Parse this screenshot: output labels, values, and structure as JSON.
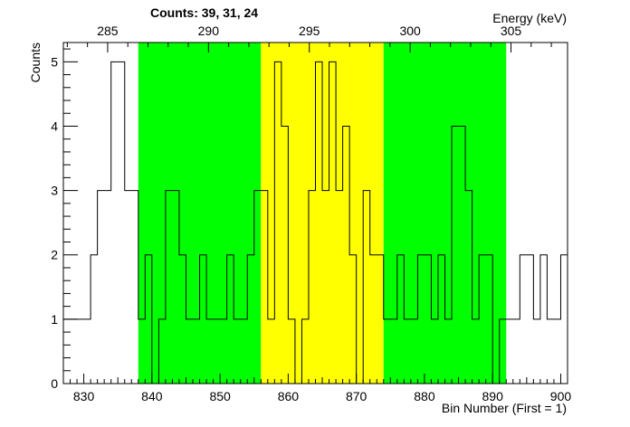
{
  "chart_data": {
    "type": "bar",
    "counts_label": "Counts:   39,   31,   24",
    "xlabel": "Bin Number (First = 1)",
    "ylabel": "Counts",
    "top_axis_label": "Energy (keV)",
    "xlim": [
      827,
      901
    ],
    "ylim": [
      0,
      5.3
    ],
    "x_ticks": [
      "830",
      "840",
      "850",
      "860",
      "870",
      "880",
      "890",
      "900"
    ],
    "y_ticks": [
      "0",
      "1",
      "2",
      "3",
      "4",
      "5"
    ],
    "energy_ticks": [
      "285",
      "290",
      "295",
      "300",
      "305"
    ],
    "energy_tick_bins": [
      833.5,
      848.3,
      863.1,
      877.9,
      892.7
    ],
    "regions": [
      {
        "start": 838,
        "end": 856,
        "color": "#00ff00",
        "count": 39
      },
      {
        "start": 856,
        "end": 874,
        "color": "#ffff00",
        "count": 31
      },
      {
        "start": 874,
        "end": 892,
        "color": "#00ff00",
        "count": 24
      }
    ],
    "bin_start": 827,
    "bin_width": 1,
    "values": [
      1,
      1,
      1,
      1,
      2,
      3,
      3,
      5,
      5,
      3,
      3,
      1,
      2,
      0,
      1,
      3,
      3,
      2,
      1,
      1,
      2,
      1,
      1,
      1,
      2,
      1,
      1,
      2,
      3,
      3,
      1,
      5,
      4,
      1,
      0,
      1,
      3,
      5,
      3,
      5,
      3,
      4,
      2,
      0,
      3,
      2,
      2,
      1,
      1,
      2,
      1,
      1,
      2,
      2,
      1,
      2,
      1,
      4,
      4,
      3,
      1,
      2,
      2,
      0,
      1,
      1,
      1,
      2,
      2,
      1,
      2,
      1,
      1,
      2,
      2,
      3,
      3,
      1,
      0,
      3,
      2,
      2,
      1,
      1,
      1,
      2,
      2,
      2,
      1,
      1,
      1,
      3,
      1,
      1,
      0,
      2,
      1,
      1,
      2,
      2,
      1
    ],
    "colors": {
      "line": "#000000",
      "background": "#ffffff"
    }
  }
}
